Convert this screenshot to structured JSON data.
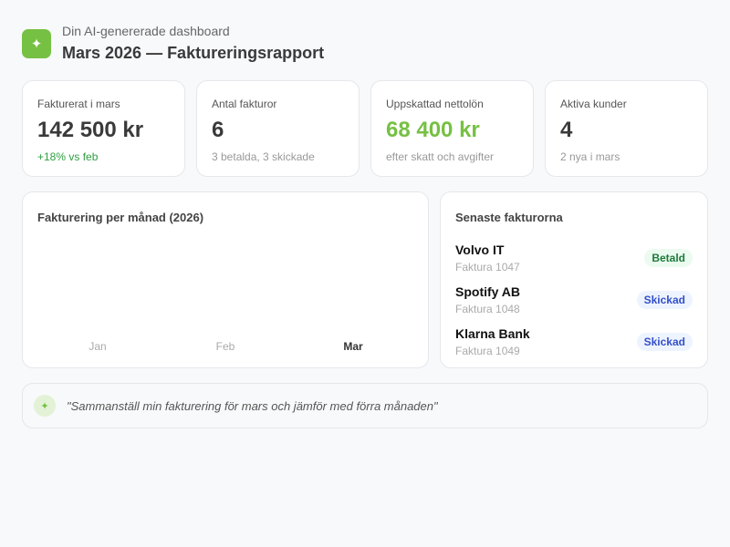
{
  "header": {
    "icon": "sparkle-icon",
    "subtitle": "Din AI-genererade dashboard",
    "title": "Mars 2026 — Faktureringsrapport"
  },
  "kpis": [
    {
      "label": "Fakturerat i mars",
      "value": "142 500 kr",
      "note": "+18% vs feb"
    },
    {
      "label": "Antal fakturor",
      "value": "6",
      "note": "3 betalda, 3 skickade"
    },
    {
      "label": "Uppskattad nettolön",
      "value": "68 400 kr",
      "note": "efter skatt och avgifter"
    },
    {
      "label": "Aktiva kunder",
      "value": "4",
      "note": "2 nya i mars"
    }
  ],
  "colors": {
    "accent": "#76c043",
    "paid": "#1f7a3a",
    "sent": "#3450c9"
  },
  "chart_data": {
    "type": "bar",
    "title": "Fakturering per månad (2026)",
    "categories": [
      "Jan",
      "Feb",
      "Mar"
    ],
    "highlighted": "Mar"
  },
  "invoices": {
    "title": "Senaste fakturorna",
    "items": [
      {
        "name": "Volvo IT",
        "number": "Faktura 1047",
        "status": "Betald"
      },
      {
        "name": "Spotify AB",
        "number": "Faktura 1048",
        "status": "Skickad"
      },
      {
        "name": "Klarna Bank",
        "number": "Faktura 1049",
        "status": "Skickad"
      }
    ]
  },
  "prompt": {
    "text": "\"Sammanställ min fakturering för mars och jämför med förra månaden\""
  }
}
